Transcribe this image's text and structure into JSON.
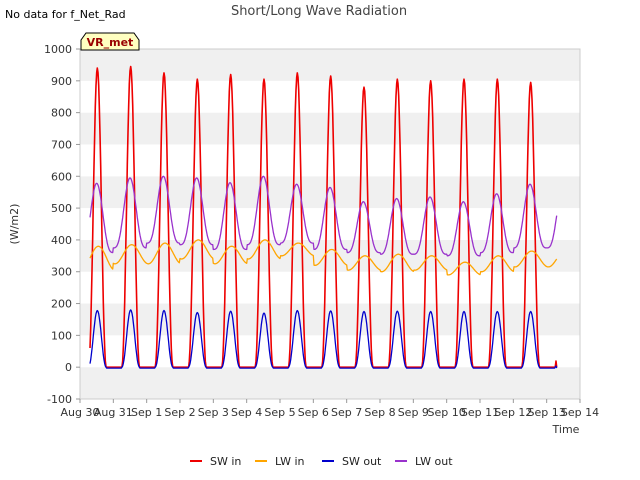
{
  "no_data_note": "No data for f_Net_Rad",
  "badge": "VR_met",
  "chart_data": {
    "type": "line",
    "title": "Short/Long Wave Radiation",
    "xlabel": "Time",
    "ylabel": "(W/m2)",
    "ylim": [
      -100,
      1000
    ],
    "yticks": [
      -100,
      0,
      100,
      200,
      300,
      400,
      500,
      600,
      700,
      800,
      900,
      1000
    ],
    "xlim": [
      0,
      15
    ],
    "xticks": [
      {
        "x": 0,
        "label": "Aug 30"
      },
      {
        "x": 1,
        "label": "Aug 31"
      },
      {
        "x": 2,
        "label": "Sep 1"
      },
      {
        "x": 3,
        "label": "Sep 2"
      },
      {
        "x": 4,
        "label": "Sep 3"
      },
      {
        "x": 5,
        "label": "Sep 4"
      },
      {
        "x": 6,
        "label": "Sep 5"
      },
      {
        "x": 7,
        "label": "Sep 6"
      },
      {
        "x": 8,
        "label": "Sep 7"
      },
      {
        "x": 9,
        "label": "Sep 8"
      },
      {
        "x": 10,
        "label": "Sep 9"
      },
      {
        "x": 11,
        "label": "Sep 10"
      },
      {
        "x": 12,
        "label": "Sep 11"
      },
      {
        "x": 13,
        "label": "Sep 12"
      },
      {
        "x": 14,
        "label": "Sep 13"
      },
      {
        "x": 15,
        "label": "Sep 14"
      }
    ],
    "grid": "horizontal bands",
    "legend_position": "bottom",
    "x_unit": "days since Aug 30",
    "series": [
      {
        "name": "SW in",
        "color": "#ee0000",
        "daily_peaks": [
          940,
          945,
          925,
          905,
          920,
          905,
          925,
          915,
          880,
          905,
          900,
          905,
          905,
          895
        ],
        "night_value": 0
      },
      {
        "name": "LW in",
        "color": "#ffa500",
        "daily_max": [
          380,
          385,
          390,
          400,
          380,
          400,
          390,
          370,
          350,
          355,
          350,
          330,
          350,
          365
        ],
        "daily_min": [
          305,
          325,
          325,
          340,
          325,
          340,
          350,
          320,
          305,
          300,
          305,
          290,
          300,
          315
        ]
      },
      {
        "name": "SW out",
        "color": "#0000cc",
        "daily_peaks": [
          178,
          180,
          178,
          172,
          176,
          170,
          178,
          177,
          175,
          176,
          175,
          175,
          175,
          175
        ],
        "night_value": -3
      },
      {
        "name": "LW out",
        "color": "#9932cc",
        "daily_max": [
          578,
          595,
          600,
          595,
          580,
          600,
          575,
          565,
          520,
          530,
          535,
          520,
          545,
          575
        ],
        "daily_min": [
          360,
          375,
          390,
          385,
          370,
          385,
          390,
          370,
          360,
          355,
          355,
          350,
          360,
          375
        ]
      }
    ]
  }
}
